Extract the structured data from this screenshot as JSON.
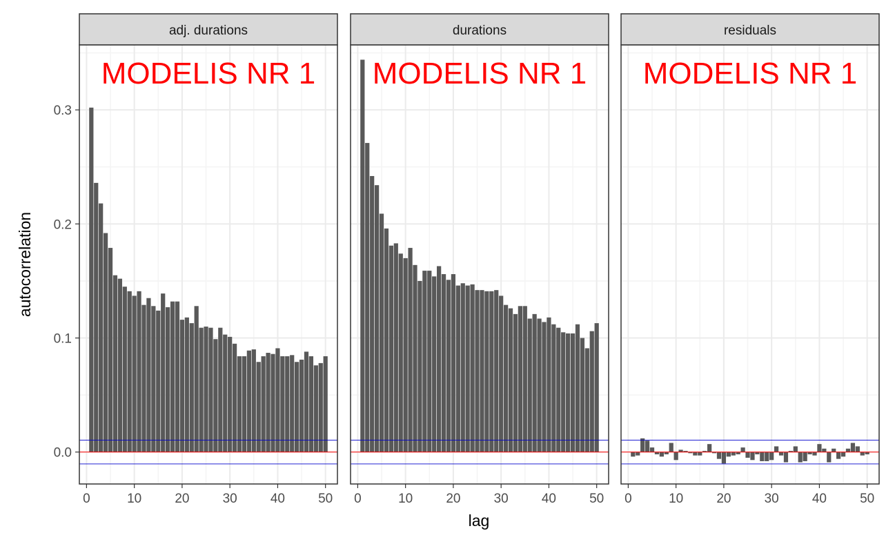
{
  "chart_data": {
    "type": "bar",
    "xlabel": "lag",
    "ylabel": "autocorrelation",
    "xlim": [
      -1.5,
      52.5
    ],
    "ylim": [
      -0.028,
      0.357
    ],
    "x_ticks": [
      0,
      10,
      20,
      30,
      40,
      50
    ],
    "y_ticks": [
      0.0,
      0.1,
      0.2,
      0.3
    ],
    "y_tick_labels": [
      "0.0",
      "0.1",
      "0.2",
      "0.3"
    ],
    "grid": true,
    "facet_layout": "1 row, 3 columns, shared y axis",
    "confidence_band": 0.0104,
    "colors": {
      "bar": "#595959",
      "zero_line": "#ff0000",
      "band_lines": "#0000cd",
      "strip_fill": "#d9d9d9",
      "panel_border": "#333333",
      "grid_major": "#ebebeb",
      "watermark": "#ff0000"
    },
    "facets": [
      {
        "label": "adj. durations",
        "watermark": "MODELIS NR 1",
        "lags": [
          1,
          2,
          3,
          4,
          5,
          6,
          7,
          8,
          9,
          10,
          11,
          12,
          13,
          14,
          15,
          16,
          17,
          18,
          19,
          20,
          21,
          22,
          23,
          24,
          25,
          26,
          27,
          28,
          29,
          30,
          31,
          32,
          33,
          34,
          35,
          36,
          37,
          38,
          39,
          40,
          41,
          42,
          43,
          44,
          45,
          46,
          47,
          48,
          49,
          50
        ],
        "values": [
          0.302,
          0.236,
          0.218,
          0.192,
          0.179,
          0.155,
          0.152,
          0.145,
          0.141,
          0.137,
          0.141,
          0.129,
          0.135,
          0.128,
          0.124,
          0.139,
          0.127,
          0.132,
          0.132,
          0.116,
          0.118,
          0.113,
          0.128,
          0.109,
          0.11,
          0.109,
          0.099,
          0.109,
          0.103,
          0.101,
          0.095,
          0.084,
          0.084,
          0.089,
          0.09,
          0.079,
          0.084,
          0.087,
          0.086,
          0.091,
          0.084,
          0.084,
          0.085,
          0.079,
          0.081,
          0.088,
          0.084,
          0.076,
          0.078,
          0.084
        ]
      },
      {
        "label": "durations",
        "watermark": "MODELIS NR 1",
        "lags": [
          1,
          2,
          3,
          4,
          5,
          6,
          7,
          8,
          9,
          10,
          11,
          12,
          13,
          14,
          15,
          16,
          17,
          18,
          19,
          20,
          21,
          22,
          23,
          24,
          25,
          26,
          27,
          28,
          29,
          30,
          31,
          32,
          33,
          34,
          35,
          36,
          37,
          38,
          39,
          40,
          41,
          42,
          43,
          44,
          45,
          46,
          47,
          48,
          49,
          50
        ],
        "values": [
          0.344,
          0.271,
          0.242,
          0.234,
          0.209,
          0.196,
          0.181,
          0.183,
          0.174,
          0.17,
          0.179,
          0.164,
          0.15,
          0.159,
          0.159,
          0.154,
          0.163,
          0.156,
          0.151,
          0.156,
          0.146,
          0.148,
          0.146,
          0.147,
          0.142,
          0.142,
          0.141,
          0.141,
          0.142,
          0.137,
          0.129,
          0.126,
          0.121,
          0.128,
          0.128,
          0.117,
          0.121,
          0.117,
          0.114,
          0.118,
          0.112,
          0.109,
          0.105,
          0.104,
          0.104,
          0.112,
          0.1,
          0.091,
          0.106,
          0.113
        ]
      },
      {
        "label": "residuals",
        "watermark": "MODELIS NR 1",
        "lags": [
          1,
          2,
          3,
          4,
          5,
          6,
          7,
          8,
          9,
          10,
          11,
          12,
          13,
          14,
          15,
          16,
          17,
          18,
          19,
          20,
          21,
          22,
          23,
          24,
          25,
          26,
          27,
          28,
          29,
          30,
          31,
          32,
          33,
          34,
          35,
          36,
          37,
          38,
          39,
          40,
          41,
          42,
          43,
          44,
          45,
          46,
          47,
          48,
          49,
          50
        ],
        "values": [
          -0.004,
          -0.003,
          0.012,
          0.01,
          0.004,
          -0.002,
          -0.004,
          -0.002,
          0.008,
          -0.007,
          0.002,
          0.001,
          -0.001,
          -0.003,
          -0.003,
          0.001,
          0.007,
          -0.001,
          -0.006,
          -0.01,
          -0.004,
          -0.003,
          -0.002,
          0.004,
          -0.005,
          -0.007,
          -0.002,
          -0.008,
          -0.008,
          -0.007,
          0.005,
          -0.003,
          -0.009,
          0.001,
          0.005,
          -0.009,
          -0.008,
          -0.002,
          -0.003,
          0.007,
          0.003,
          -0.009,
          0.003,
          -0.006,
          -0.004,
          0.003,
          0.008,
          0.005,
          -0.003,
          -0.002
        ]
      }
    ]
  }
}
